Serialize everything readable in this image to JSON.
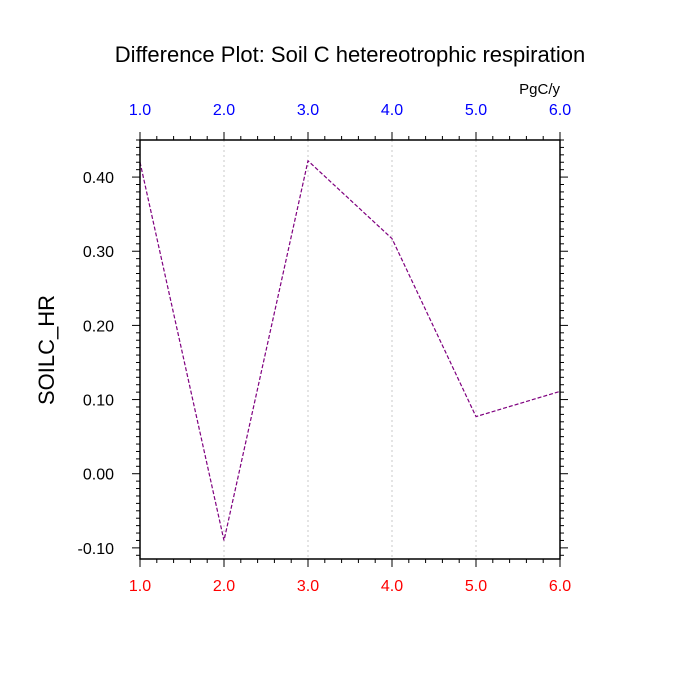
{
  "chart_data": {
    "type": "line",
    "title": "Difference Plot: Soil C hetereotrophic respiration",
    "units": "PgC/y",
    "ylabel": "SOILC_HR",
    "xlim": [
      1.0,
      6.0
    ],
    "ylim": [
      -0.115,
      0.45
    ],
    "x_ticks": [
      "1.0",
      "2.0",
      "3.0",
      "4.0",
      "5.0",
      "6.0"
    ],
    "x_tick_values": [
      1,
      2,
      3,
      4,
      5,
      6
    ],
    "y_ticks": [
      "-0.10",
      "0.00",
      "0.10",
      "0.20",
      "0.30",
      "0.40"
    ],
    "y_tick_values": [
      -0.1,
      0.0,
      0.1,
      0.2,
      0.3,
      0.4
    ],
    "top_axis_color": "#0000ff",
    "bottom_axis_color": "#ff0000",
    "series": [
      {
        "x": [
          1,
          2,
          3,
          4,
          5,
          6
        ],
        "values": [
          0.42,
          -0.09,
          0.422,
          0.317,
          0.077,
          0.111
        ],
        "color": "#7f007f",
        "style": "dashed"
      }
    ],
    "grid": "vertical-dotted"
  }
}
